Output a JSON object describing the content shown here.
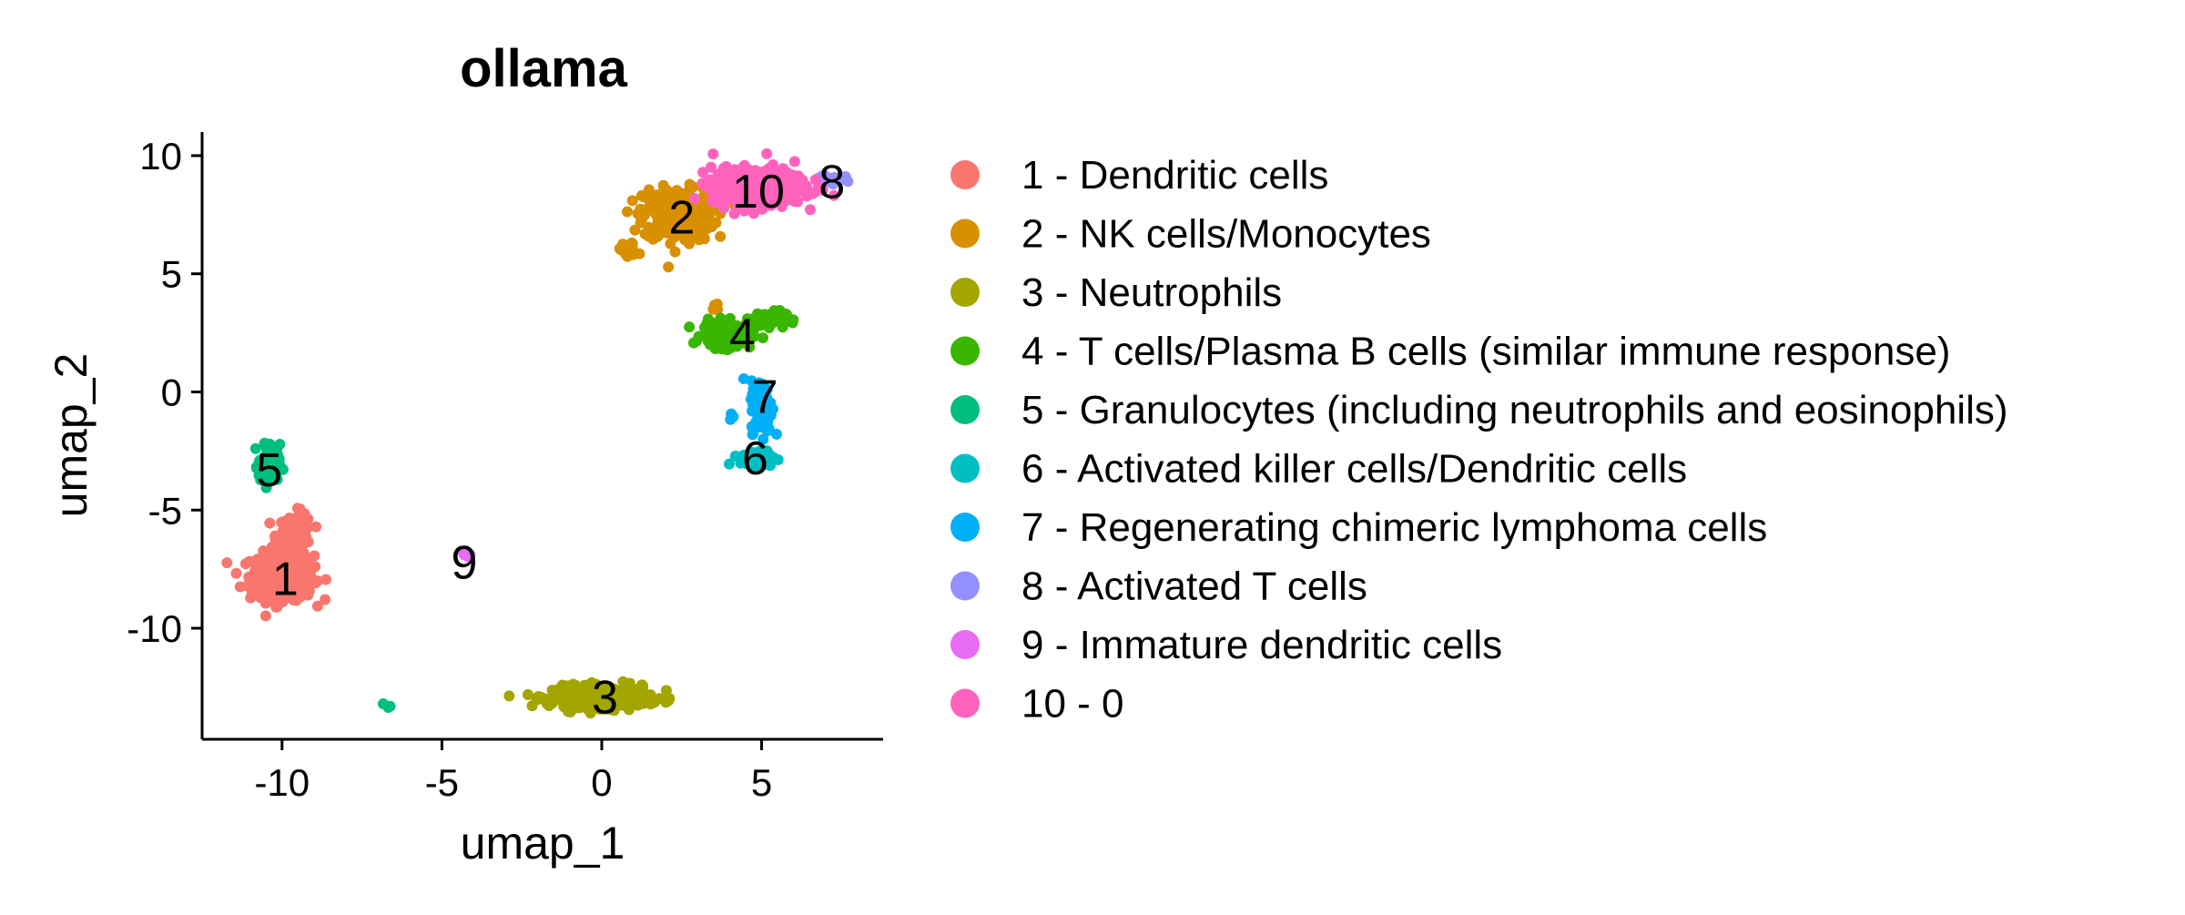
{
  "chart_data": {
    "type": "scatter",
    "title": "ollama",
    "xlabel": "umap_1",
    "ylabel": "umap_2",
    "xlim": [
      -12.5,
      8.8
    ],
    "ylim": [
      -14.7,
      11.0
    ],
    "xticks": [
      -10,
      -5,
      0,
      5
    ],
    "yticks": [
      -10,
      -5,
      0,
      5,
      10
    ],
    "grid": false,
    "legend_position": "right",
    "series": [
      {
        "id": "1",
        "name": "1 - Dendritic cells",
        "color": "#F8766D",
        "center": [
          -9.9,
          -7.9
        ],
        "blobs": [
          [
            -10.0,
            -7.8,
            0.9,
            0.9,
            420
          ],
          [
            -9.6,
            -6.0,
            0.5,
            0.8,
            100
          ]
        ]
      },
      {
        "id": "2",
        "name": "2 - NK cells/Monocytes",
        "color": "#D89000",
        "center": [
          2.5,
          7.4
        ],
        "blobs": [
          [
            2.4,
            7.5,
            1.0,
            1.0,
            360
          ],
          [
            0.8,
            6.0,
            0.3,
            0.3,
            20
          ],
          [
            3.6,
            3.6,
            0.2,
            0.2,
            10
          ]
        ]
      },
      {
        "id": "3",
        "name": "3 - Neutrophils",
        "color": "#A3A500",
        "center": [
          0.1,
          -12.9
        ],
        "blobs": [
          [
            0.0,
            -12.9,
            1.4,
            0.4,
            400
          ]
        ]
      },
      {
        "id": "4",
        "name": "4 - T cells/Plasma B cells (similar immune response)",
        "color": "#39B600",
        "center": [
          4.4,
          2.4
        ],
        "blobs": [
          [
            3.9,
            2.4,
            0.7,
            0.5,
            160
          ],
          [
            5.2,
            3.1,
            0.5,
            0.3,
            60
          ]
        ]
      },
      {
        "id": "5",
        "name": "5 - Granulocytes (including neutrophils and eosinophils)",
        "color": "#00BF7D",
        "center": [
          -10.4,
          -3.3
        ],
        "blobs": [
          [
            -10.4,
            -3.1,
            0.3,
            0.8,
            90
          ],
          [
            -6.7,
            -13.3,
            0.1,
            0.1,
            4
          ]
        ]
      },
      {
        "id": "6",
        "name": "6 - Activated killer cells/Dendritic cells",
        "color": "#00BFC4",
        "center": [
          4.8,
          -2.8
        ],
        "blobs": [
          [
            4.9,
            -2.8,
            0.5,
            0.3,
            90
          ]
        ]
      },
      {
        "id": "7",
        "name": "7 - Regenerating chimeric lymphoma cells",
        "color": "#00B0F6",
        "center": [
          5.1,
          -0.2
        ],
        "blobs": [
          [
            5.0,
            -0.6,
            0.3,
            1.0,
            110
          ],
          [
            4.1,
            -1.1,
            0.15,
            0.2,
            6
          ]
        ]
      },
      {
        "id": "8",
        "name": "8 - Activated T cells",
        "color": "#9590FF",
        "center": [
          7.2,
          8.9
        ],
        "blobs": [
          [
            7.1,
            9.0,
            0.4,
            0.2,
            40
          ]
        ]
      },
      {
        "id": "9",
        "name": "9 - Immature dendritic cells",
        "color": "#E76BF3",
        "center": [
          -4.3,
          -7.2
        ],
        "blobs": [
          [
            -4.3,
            -6.9,
            0.15,
            0.1,
            5
          ]
        ]
      },
      {
        "id": "10",
        "name": "10 - 0",
        "color": "#FF62BC",
        "center": [
          4.9,
          8.5
        ],
        "blobs": [
          [
            4.9,
            8.7,
            1.3,
            0.7,
            460
          ]
        ]
      }
    ]
  }
}
